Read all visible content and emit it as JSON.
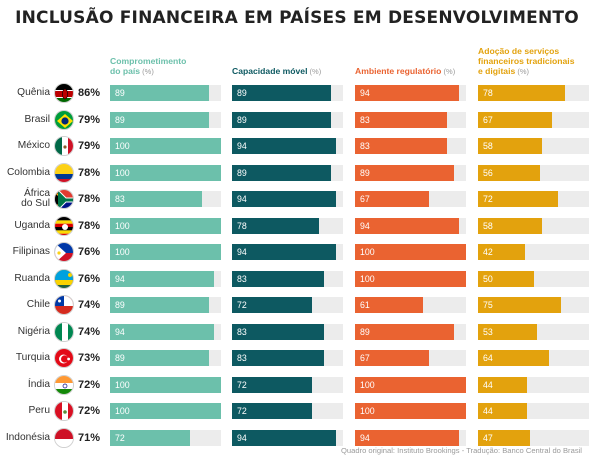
{
  "chart_data": {
    "type": "bar",
    "title": "INCLUSÃO FINANCEIRA EM PAÍSES EM DESENVOLVIMENTO",
    "source": "Quadro original: Instituto Brookings - Tradução: Banco Central do Brasil",
    "unit_label": "(%)",
    "xlim": [
      0,
      100
    ],
    "categories": [
      "Quênia",
      "Brasil",
      "México",
      "Colombia",
      "África do Sul",
      "Uganda",
      "Filipinas",
      "Ruanda",
      "Chile",
      "Nigéria",
      "Turquia",
      "Índia",
      "Peru",
      "Indonésia"
    ],
    "category_lines": [
      [
        "Quênia"
      ],
      [
        "Brasil"
      ],
      [
        "México"
      ],
      [
        "Colombia"
      ],
      [
        "África",
        "do Sul"
      ],
      [
        "Uganda"
      ],
      [
        "Filipinas"
      ],
      [
        "Ruanda"
      ],
      [
        "Chile"
      ],
      [
        "Nigéria"
      ],
      [
        "Turquia"
      ],
      [
        "Índia"
      ],
      [
        "Peru"
      ],
      [
        "Indonésia"
      ]
    ],
    "overall": [
      "86%",
      "79%",
      "79%",
      "78%",
      "78%",
      "78%",
      "76%",
      "76%",
      "74%",
      "74%",
      "73%",
      "72%",
      "72%",
      "71%"
    ],
    "series": [
      {
        "name": "Comprometimento do país",
        "name_lines": [
          "Comprometimento",
          "do país"
        ],
        "color": "#6cc0ab",
        "values": [
          89,
          89,
          100,
          100,
          83,
          100,
          100,
          94,
          89,
          94,
          89,
          100,
          100,
          72
        ]
      },
      {
        "name": "Capacidade móvel",
        "name_lines": [
          "Capacidade móvel"
        ],
        "color": "#0d5961",
        "values": [
          89,
          89,
          94,
          89,
          94,
          78,
          94,
          83,
          72,
          83,
          83,
          72,
          72,
          94
        ]
      },
      {
        "name": "Ambiente regulatório",
        "name_lines": [
          "Ambiente regulatório"
        ],
        "color": "#ea6331",
        "values": [
          94,
          83,
          83,
          89,
          67,
          94,
          100,
          100,
          61,
          89,
          67,
          100,
          100,
          94
        ]
      },
      {
        "name": "Adoção de serviços financeiros tradicionais e digitais",
        "name_lines": [
          "Adoção de serviços",
          "financeiros tradicionais",
          "e digitais"
        ],
        "color": "#e3a20d",
        "values": [
          78,
          67,
          58,
          56,
          72,
          58,
          42,
          50,
          75,
          53,
          64,
          44,
          44,
          47
        ]
      }
    ],
    "flags": [
      "kenya-flag",
      "brazil-flag",
      "mexico-flag",
      "colombia-flag",
      "south-africa-flag",
      "uganda-flag",
      "philippines-flag",
      "rwanda-flag",
      "chile-flag",
      "nigeria-flag",
      "turkey-flag",
      "india-flag",
      "peru-flag",
      "indonesia-flag"
    ]
  }
}
